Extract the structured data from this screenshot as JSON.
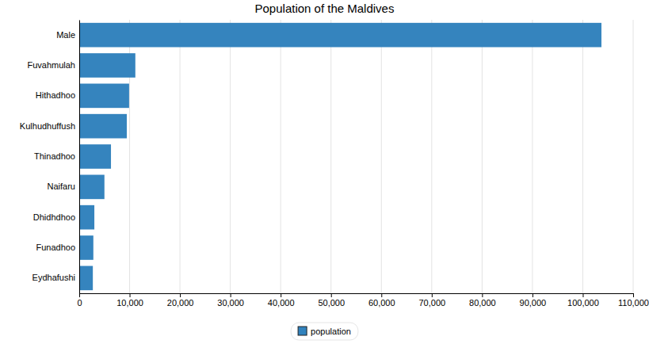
{
  "chart_data": {
    "type": "bar",
    "title": "Population of the Maldives",
    "orientation": "horizontal",
    "categories": [
      "Male",
      "Fuvahmulah",
      "Hithadhoo",
      "Kulhudhuffush",
      "Thinadhoo",
      "Naifaru",
      "Dhidhdhoo",
      "Funadhoo",
      "Eydhafushi"
    ],
    "series": [
      {
        "name": "population",
        "color": "#3182bd",
        "values": [
          103700,
          11140,
          9900,
          9440,
          6300,
          5000,
          3000,
          2800,
          2700
        ]
      }
    ],
    "xlim": [
      0,
      110000
    ],
    "xticks": [
      0,
      {
        "value": 10000,
        "label": "10,000"
      },
      {
        "value": 20000,
        "label": "20,000"
      },
      {
        "value": 30000,
        "label": "30,000"
      },
      {
        "value": 40000,
        "label": "40,000"
      },
      {
        "value": 50000,
        "label": "50,000"
      },
      {
        "value": 60000,
        "label": "60,000"
      },
      {
        "value": 70000,
        "label": "70,000"
      },
      {
        "value": 80000,
        "label": "80,000"
      },
      {
        "value": 90000,
        "label": "90,000"
      },
      {
        "value": 100000,
        "label": "100,000"
      },
      {
        "value": 110000,
        "label": "110,000"
      }
    ],
    "grid": true,
    "legend": "bottom"
  }
}
